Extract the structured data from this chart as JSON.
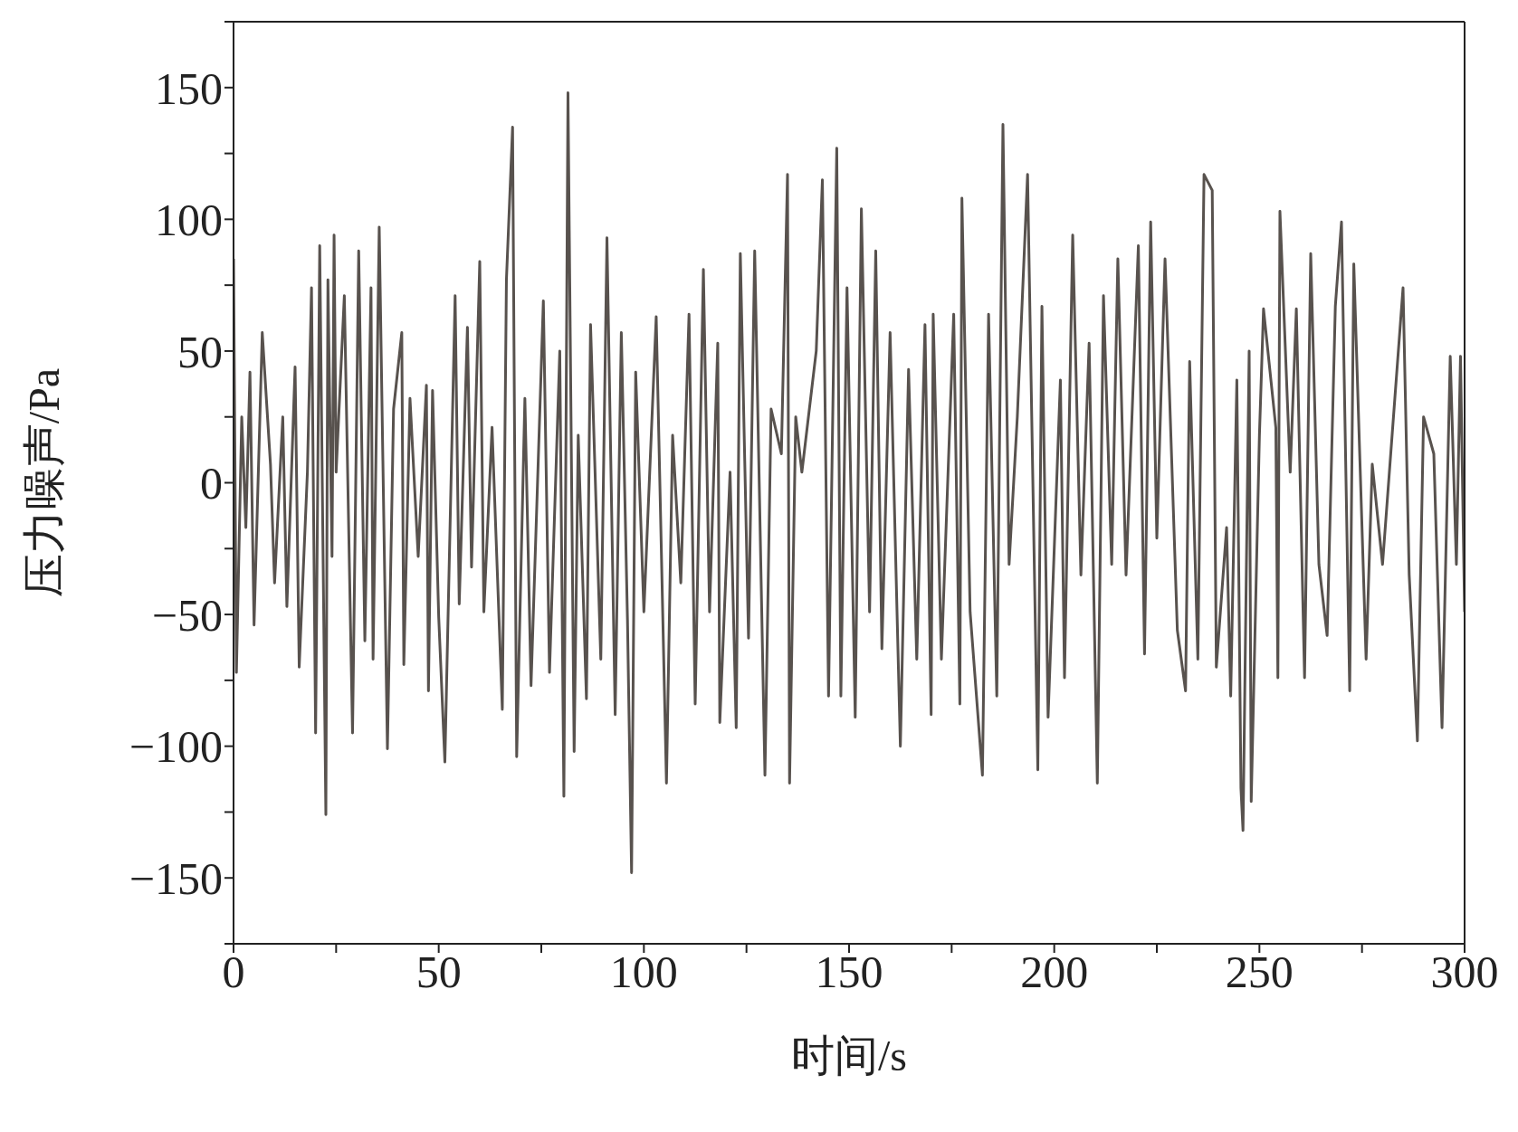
{
  "chart_data": {
    "type": "line",
    "xlabel": "时间/s",
    "ylabel": "压力噪声/Pa",
    "xlim": [
      0,
      300
    ],
    "ylim": [
      -175,
      175
    ],
    "xticks": [
      0,
      {
        "value": 25,
        "label": null
      },
      50,
      {
        "value": 75,
        "label": null
      },
      100,
      {
        "value": 125,
        "label": null
      },
      150,
      {
        "value": 175,
        "label": null
      },
      200,
      {
        "value": 225,
        "label": null
      },
      250,
      {
        "value": 275,
        "label": null
      },
      300
    ],
    "yticks": [
      {
        "value": -175,
        "label": null
      },
      -150,
      {
        "value": -125,
        "label": null
      },
      -100,
      {
        "value": -75,
        "label": null
      },
      -50,
      {
        "value": -25,
        "label": null
      },
      0,
      {
        "value": 25,
        "label": null
      },
      50,
      {
        "value": 75,
        "label": null
      },
      100,
      {
        "value": 125,
        "label": null
      },
      150,
      {
        "value": 175,
        "label": null
      }
    ],
    "grid": false,
    "legend": false,
    "marker": "none",
    "line_style": "solid",
    "x": [
      0,
      0.7,
      2,
      3,
      4,
      5,
      7,
      9,
      10,
      12,
      13,
      15,
      16,
      18,
      19,
      20,
      21,
      22.5,
      23,
      24,
      24.5,
      25,
      27,
      29,
      30.5,
      32,
      33.5,
      34,
      35.5,
      37.5,
      39,
      41,
      41.5,
      43,
      45,
      47,
      47.5,
      48.5,
      50,
      51.5,
      54,
      55,
      57,
      58,
      60,
      61,
      63,
      65.5,
      66.5,
      68,
      69,
      71,
      72.5,
      75.5,
      77,
      79.5,
      80.5,
      81.5,
      83,
      84,
      86,
      87,
      89.5,
      91,
      93,
      94.5,
      96,
      97,
      98,
      100,
      103,
      105.5,
      107,
      109,
      111,
      112.5,
      114.5,
      116,
      118,
      118.5,
      121,
      122.5,
      123.5,
      125.5,
      127,
      129.5,
      131,
      133.5,
      135,
      135.5,
      137,
      138.5,
      142,
      143.5,
      145,
      147,
      148,
      149.5,
      151.5,
      153,
      155,
      156.5,
      158,
      160,
      162.5,
      164.5,
      166.5,
      168.5,
      170,
      170.5,
      172.5,
      175.5,
      177,
      177.5,
      179.5,
      182.5,
      184,
      186,
      187.5,
      189,
      191,
      193.5,
      196,
      197,
      198.5,
      201.5,
      202.5,
      204.5,
      206.5,
      208.5,
      210.5,
      212,
      214,
      215.5,
      217.5,
      220.5,
      222,
      223.5,
      225,
      227,
      230,
      232,
      233,
      235,
      236.5,
      238.5,
      239.5,
      242,
      243,
      244.5,
      245.5,
      246,
      247.5,
      248,
      250,
      251,
      254,
      254.5,
      255,
      257.5,
      259,
      261,
      262.5,
      264.5,
      266.5,
      268.5,
      270,
      272,
      273,
      276,
      277.5,
      280,
      283,
      285,
      286.5,
      288.5,
      290,
      292.5,
      294.5,
      296.5,
      298,
      299,
      300
    ],
    "series": [
      {
        "color": "#58524e",
        "values": [
          85,
          -72,
          25,
          -17,
          42,
          -54,
          57,
          7,
          -38,
          25,
          -47,
          44,
          -70,
          4,
          74,
          -95,
          90,
          -126,
          77,
          -28,
          94,
          4,
          71,
          -95,
          88,
          -60,
          74,
          -67,
          97,
          -101,
          28,
          57,
          -69,
          32,
          -28,
          37,
          -79,
          35,
          -51,
          -106,
          71,
          -46,
          59,
          -32,
          84,
          -49,
          21,
          -86,
          77,
          135,
          -104,
          32,
          -77,
          69,
          -72,
          50,
          -119,
          148,
          -102,
          18,
          -82,
          60,
          -67,
          93,
          -88,
          57,
          -52,
          -148,
          42,
          -49,
          63,
          -114,
          18,
          -38,
          64,
          -84,
          81,
          -49,
          53,
          -91,
          4,
          -93,
          87,
          -59,
          88,
          -111,
          28,
          11,
          117,
          -114,
          25,
          4,
          50,
          115,
          -81,
          127,
          -81,
          74,
          -89,
          104,
          -49,
          88,
          -63,
          57,
          -100,
          43,
          -67,
          60,
          -88,
          64,
          -67,
          64,
          -84,
          108,
          -49,
          -111,
          64,
          -81,
          136,
          -31,
          25,
          117,
          -109,
          67,
          -89,
          39,
          -74,
          94,
          -35,
          53,
          -114,
          71,
          -31,
          85,
          -35,
          90,
          -65,
          99,
          -21,
          85,
          -56,
          -79,
          46,
          -67,
          117,
          111,
          -70,
          -17,
          -81,
          39,
          -116,
          -132,
          50,
          -121,
          18,
          66,
          21,
          -74,
          103,
          4,
          66,
          -74,
          87,
          -31,
          -58,
          67,
          99,
          -79,
          83,
          -67,
          7,
          -31,
          32,
          74,
          -35,
          -98,
          25,
          11,
          -93,
          48,
          -31,
          48,
          -49
        ]
      }
    ]
  }
}
